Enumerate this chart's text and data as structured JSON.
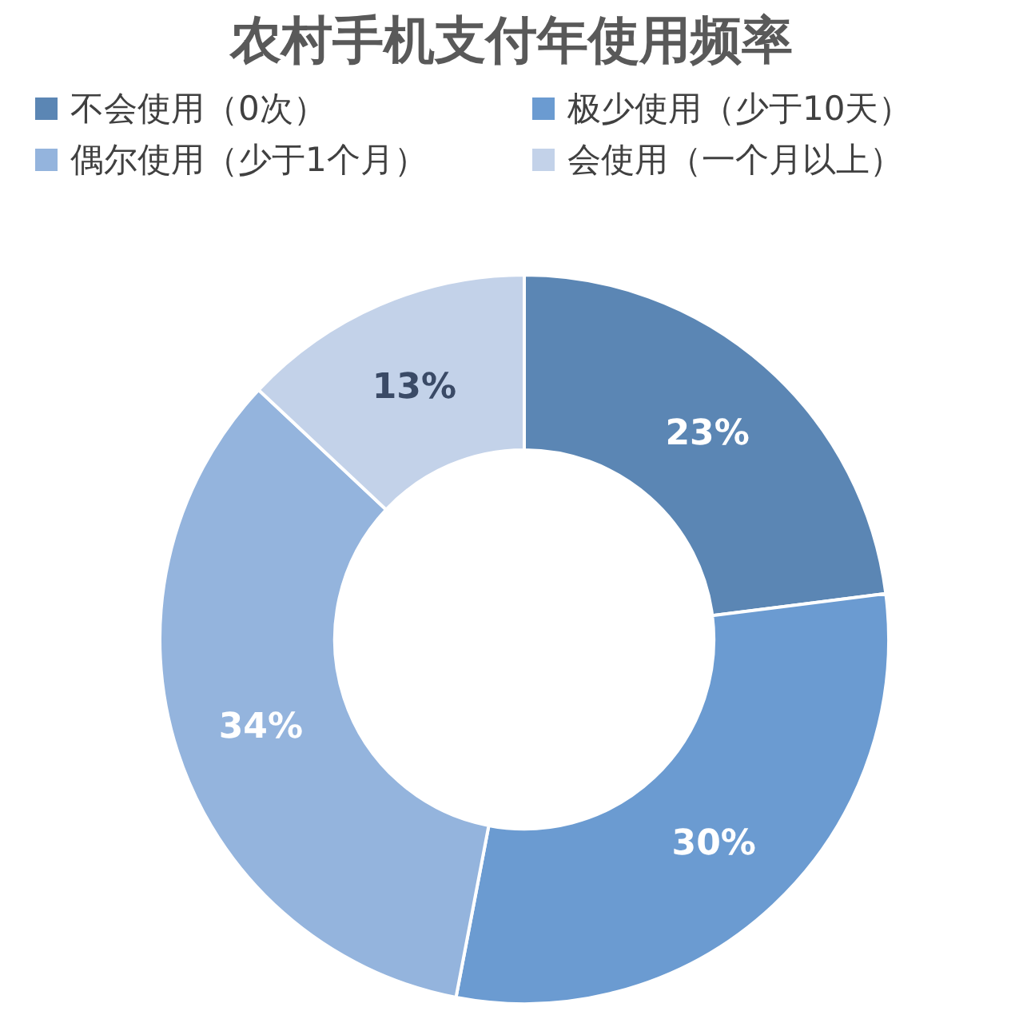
{
  "chart_data": {
    "type": "donut",
    "title": "农村手机支付年使用频率",
    "categories": [
      "不会使用（0次）",
      "极少使用（少于10天）",
      "偶尔使用（少于1个月）",
      "会使用（一个月以上）"
    ],
    "values": [
      23,
      30,
      34,
      13
    ],
    "colors": [
      "#5b86b4",
      "#6b9bd1",
      "#94b4dd",
      "#c3d2e9"
    ],
    "value_labels": [
      "23%",
      "30%",
      "34%",
      "13%"
    ],
    "legend": "top"
  }
}
